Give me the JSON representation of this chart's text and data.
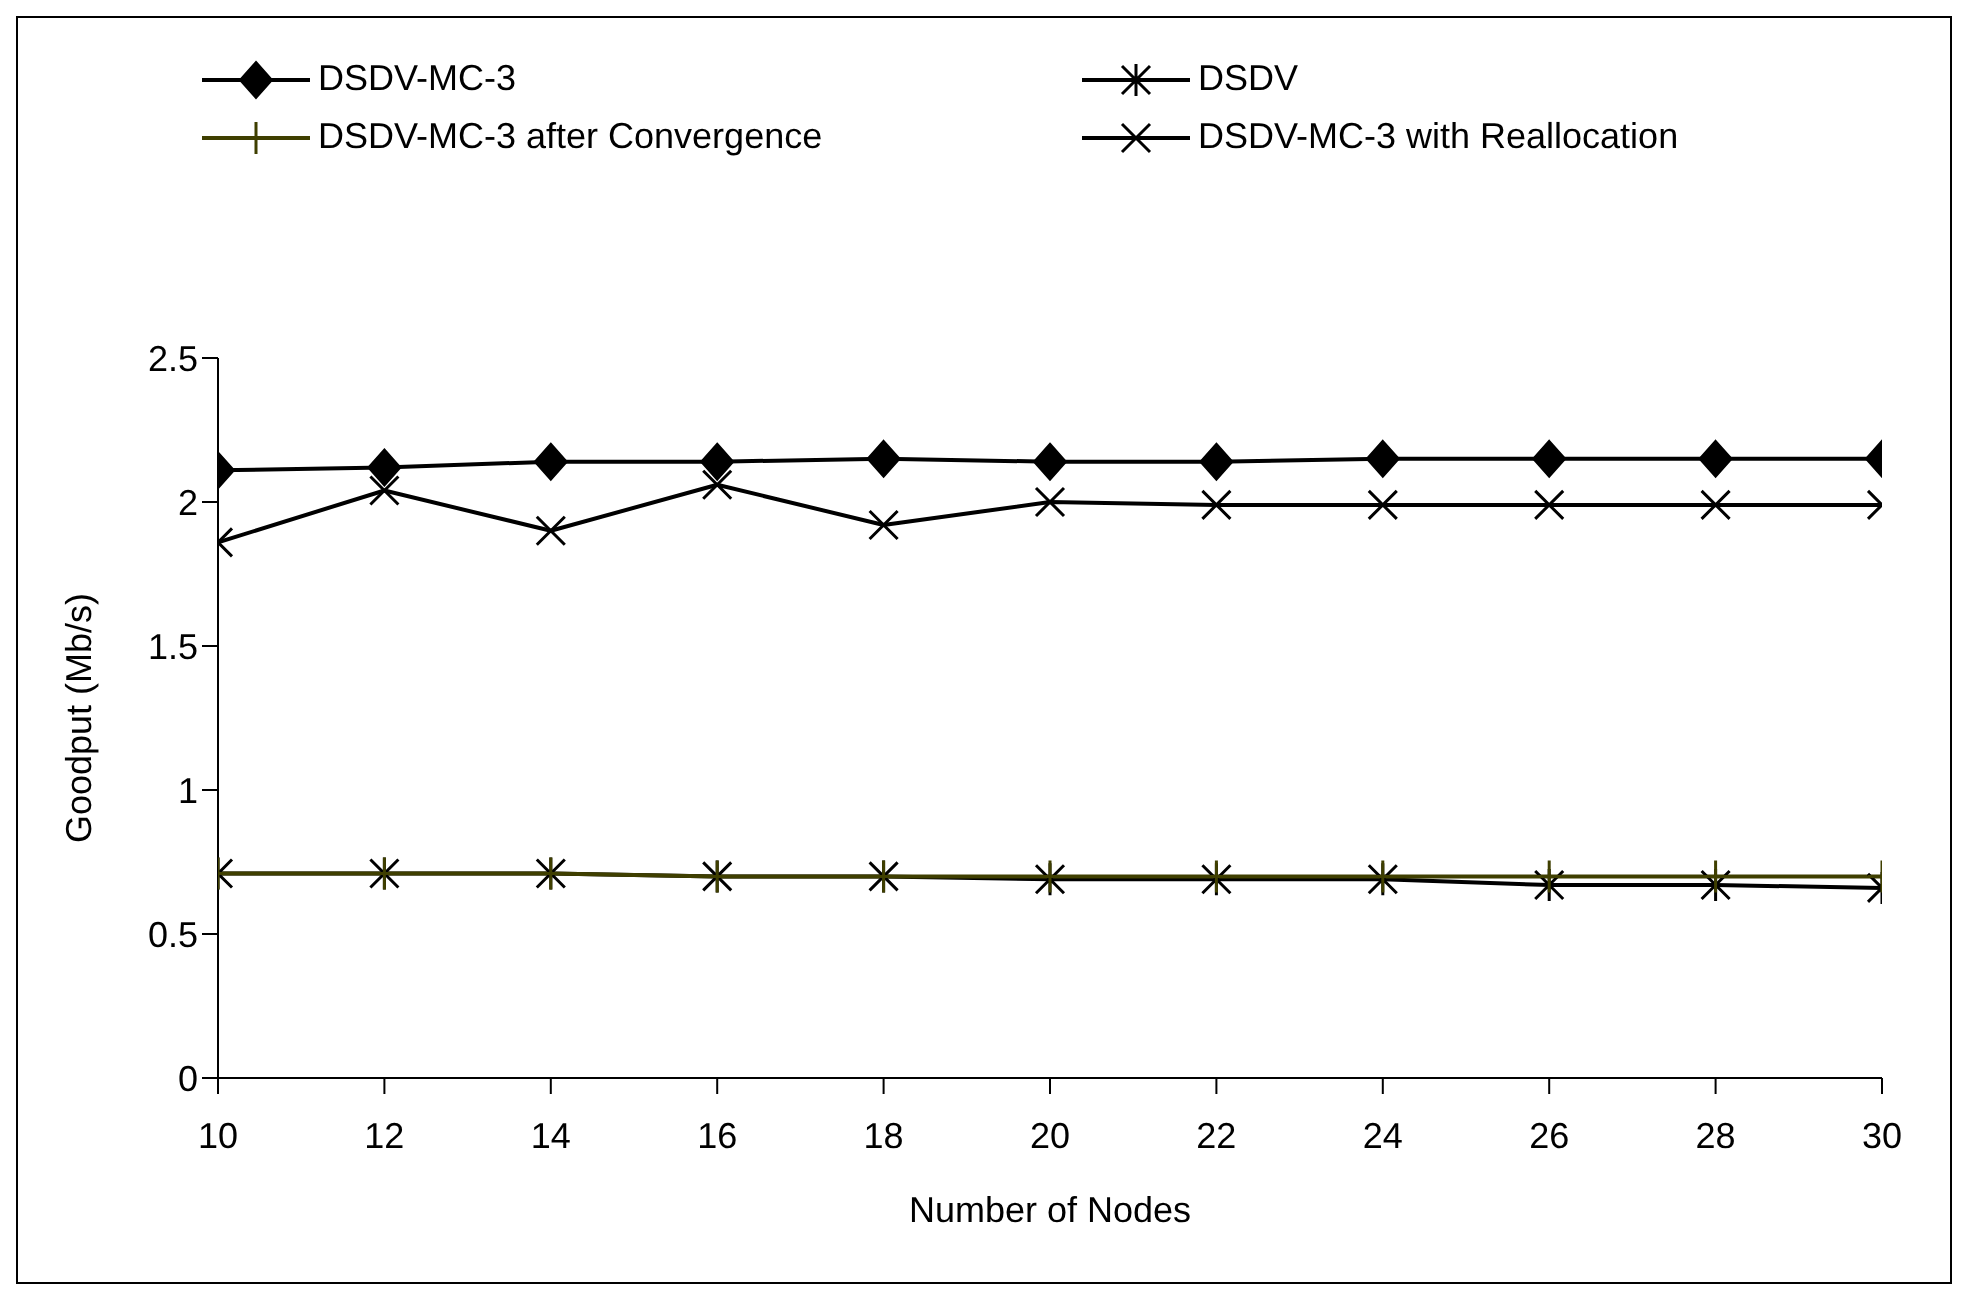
{
  "chart_data": {
    "type": "line",
    "xlabel": "Number of Nodes",
    "ylabel": "Goodput (Mb/s)",
    "x": [
      10,
      12,
      14,
      16,
      18,
      20,
      22,
      24,
      26,
      28,
      30
    ],
    "series": [
      {
        "name": "DSDV-MC-3",
        "color": "#000000",
        "marker": "diamond",
        "values": [
          2.11,
          2.12,
          2.14,
          2.14,
          2.15,
          2.14,
          2.14,
          2.15,
          2.15,
          2.15,
          2.15
        ]
      },
      {
        "name": "DSDV",
        "color": "#000000",
        "marker": "cross",
        "values": [
          0.71,
          0.71,
          0.71,
          0.7,
          0.7,
          0.69,
          0.69,
          0.69,
          0.67,
          0.67,
          0.66
        ]
      },
      {
        "name": "DSDV-MC-3 after Convergence",
        "color": "#3f3f00",
        "marker": "plus",
        "values": [
          0.71,
          0.71,
          0.71,
          0.7,
          0.7,
          0.7,
          0.7,
          0.7,
          0.7,
          0.7,
          0.7
        ]
      },
      {
        "name": "DSDV-MC-3 with Reallocation",
        "color": "#000000",
        "marker": "x",
        "values": [
          1.86,
          2.04,
          1.9,
          2.06,
          1.92,
          2.0,
          1.99,
          1.99,
          1.99,
          1.99,
          1.99
        ]
      }
    ],
    "xlim": [
      10,
      30
    ],
    "xticks": [
      10,
      12,
      14,
      16,
      18,
      20,
      22,
      24,
      26,
      28,
      30
    ],
    "ylim": [
      0,
      2.5
    ],
    "yticks": [
      0,
      0.5,
      1,
      1.5,
      2,
      2.5
    ],
    "grid": false,
    "legend": "top",
    "line_style": "solid"
  }
}
